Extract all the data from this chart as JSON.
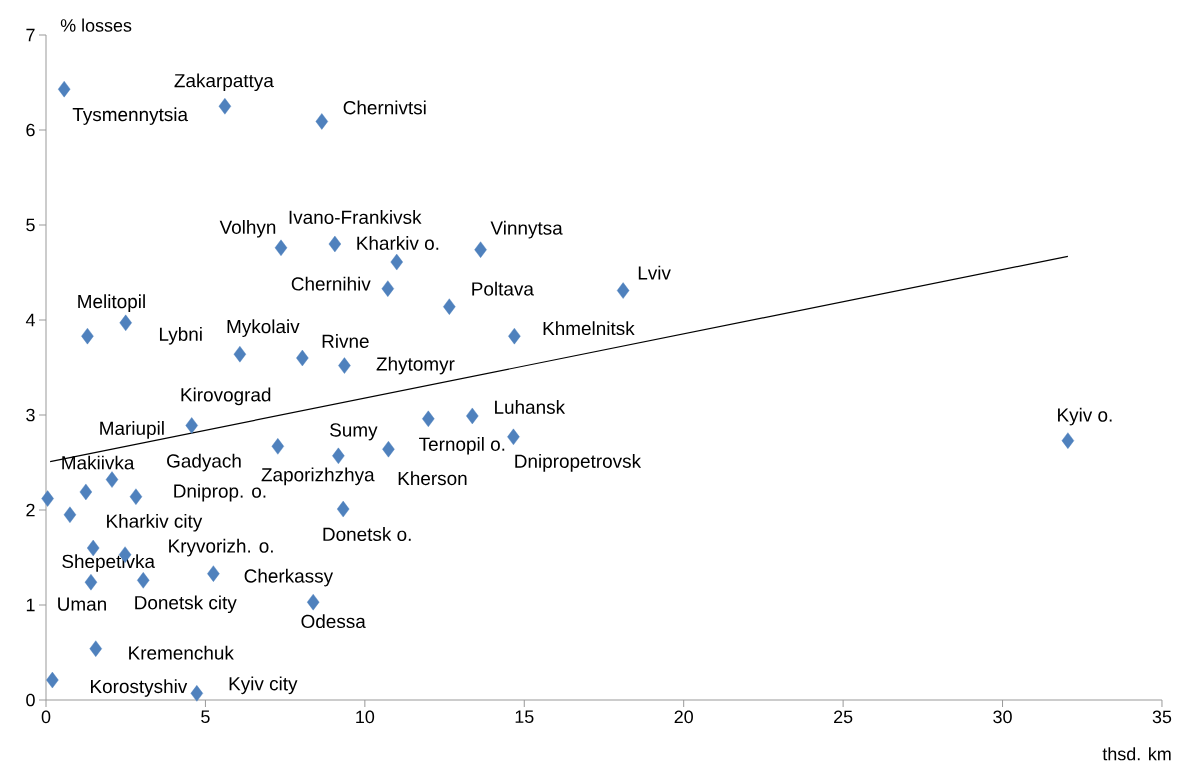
{
  "chart_data": {
    "type": "scatter",
    "xlabel": "thsd. km",
    "ylabel": "% losses",
    "xlim": [
      0,
      35
    ],
    "ylim": [
      0,
      7
    ],
    "xticks": [
      0,
      5,
      10,
      15,
      20,
      25,
      30,
      35
    ],
    "yticks": [
      0,
      1,
      2,
      3,
      4,
      5,
      6,
      7
    ],
    "grid": false,
    "marker": "diamond",
    "series": [
      {
        "color": "#4f81bd",
        "x": [
          0.57,
          5.61,
          8.65,
          7.37,
          9.06,
          11.0,
          10.72,
          12.65,
          1.3,
          2.5,
          6.08,
          8.04,
          9.36,
          13.63,
          18.1,
          14.69,
          11.99,
          13.37,
          14.66,
          10.74,
          9.17,
          7.27,
          4.57,
          0.05,
          1.25,
          2.07,
          2.82,
          0.75,
          1.48,
          2.48,
          1.41,
          3.05,
          5.25,
          8.38,
          9.32,
          1.56,
          0.2,
          4.73,
          32.05
        ],
        "values": [
          6.43,
          6.25,
          6.09,
          4.76,
          4.8,
          4.61,
          4.33,
          4.14,
          3.83,
          3.97,
          3.64,
          3.6,
          3.52,
          4.74,
          4.31,
          3.83,
          2.96,
          2.99,
          2.77,
          2.64,
          2.57,
          2.67,
          2.89,
          2.12,
          2.19,
          2.32,
          2.14,
          1.95,
          1.6,
          1.53,
          1.24,
          1.26,
          1.33,
          1.03,
          2.01,
          0.54,
          0.21,
          0.07,
          2.73
        ]
      },
      {
        "type": "line",
        "color": "#000000",
        "marker": "none",
        "line_style": "solid",
        "x": [
          0.13,
          32.05
        ],
        "values": [
          2.51,
          4.67
        ]
      }
    ],
    "annotations": [
      {
        "text": "Tysmennytsia",
        "x": 0.57,
        "y": 6.43
      },
      {
        "text": "Zakarpattya",
        "x": 5.61,
        "y": 6.25
      },
      {
        "text": "Chernivtsi",
        "x": 8.65,
        "y": 6.09
      },
      {
        "text": "Volhyn",
        "x": 7.37,
        "y": 4.76
      },
      {
        "text": "Kharkiv o.",
        "x": 9.06,
        "y": 4.8
      },
      {
        "text": "Ivano-Frankivsk",
        "x": 11.0,
        "y": 4.61
      },
      {
        "text": "Chernihiv",
        "x": 10.72,
        "y": 4.33
      },
      {
        "text": "Poltava",
        "x": 12.65,
        "y": 4.14
      },
      {
        "text": "Melitopil",
        "x": 1.3,
        "y": 3.83
      },
      {
        "text": "Lybni",
        "x": 2.5,
        "y": 3.97
      },
      {
        "text": "Mykolaiv",
        "x": 6.08,
        "y": 3.64
      },
      {
        "text": "Rivne",
        "x": 8.04,
        "y": 3.6
      },
      {
        "text": "Zhytomyr",
        "x": 9.36,
        "y": 3.52
      },
      {
        "text": "Vinnytsa",
        "x": 13.63,
        "y": 4.74
      },
      {
        "text": "Lviv",
        "x": 18.1,
        "y": 4.31
      },
      {
        "text": "Khmelnitsk",
        "x": 14.69,
        "y": 3.83
      },
      {
        "text": "Ternopil o.",
        "x": 11.99,
        "y": 2.96
      },
      {
        "text": "Luhansk",
        "x": 13.37,
        "y": 2.99
      },
      {
        "text": "Dnipropetrovsk",
        "x": 14.66,
        "y": 2.77
      },
      {
        "text": "Kherson",
        "x": 10.74,
        "y": 2.64
      },
      {
        "text": "Sumy",
        "x": 9.17,
        "y": 2.57
      },
      {
        "text": "Zaporizhzhya",
        "x": 7.27,
        "y": 2.67
      },
      {
        "text": "Kirovograd",
        "x": 4.57,
        "y": 2.89
      },
      {
        "text": "Makiivka",
        "x": 0.05,
        "y": 2.12
      },
      {
        "text": "Mariupil",
        "x": 1.25,
        "y": 2.19
      },
      {
        "text": "Gadyach",
        "x": 2.07,
        "y": 2.32
      },
      {
        "text": "Dniprop. o.",
        "x": 2.82,
        "y": 2.14
      },
      {
        "text": "Kharkiv city",
        "x": 0.75,
        "y": 1.95
      },
      {
        "text": "Shepetivka",
        "x": 1.48,
        "y": 1.6
      },
      {
        "text": "Kryvorizh. o.",
        "x": 2.48,
        "y": 1.53
      },
      {
        "text": "Uman",
        "x": 1.41,
        "y": 1.24
      },
      {
        "text": "Donetsk city",
        "x": 3.05,
        "y": 1.26
      },
      {
        "text": "Cherkassy",
        "x": 5.25,
        "y": 1.33
      },
      {
        "text": "Odessa",
        "x": 8.38,
        "y": 1.03
      },
      {
        "text": "Donetsk o.",
        "x": 9.32,
        "y": 2.01
      },
      {
        "text": "Kremenchuk",
        "x": 1.56,
        "y": 0.54
      },
      {
        "text": "Korostyshiv",
        "x": 0.2,
        "y": 0.21
      },
      {
        "text": "Kyiv city",
        "x": 4.73,
        "y": 0.07
      },
      {
        "text": "Kyiv o.",
        "x": 32.05,
        "y": 2.73
      }
    ]
  }
}
